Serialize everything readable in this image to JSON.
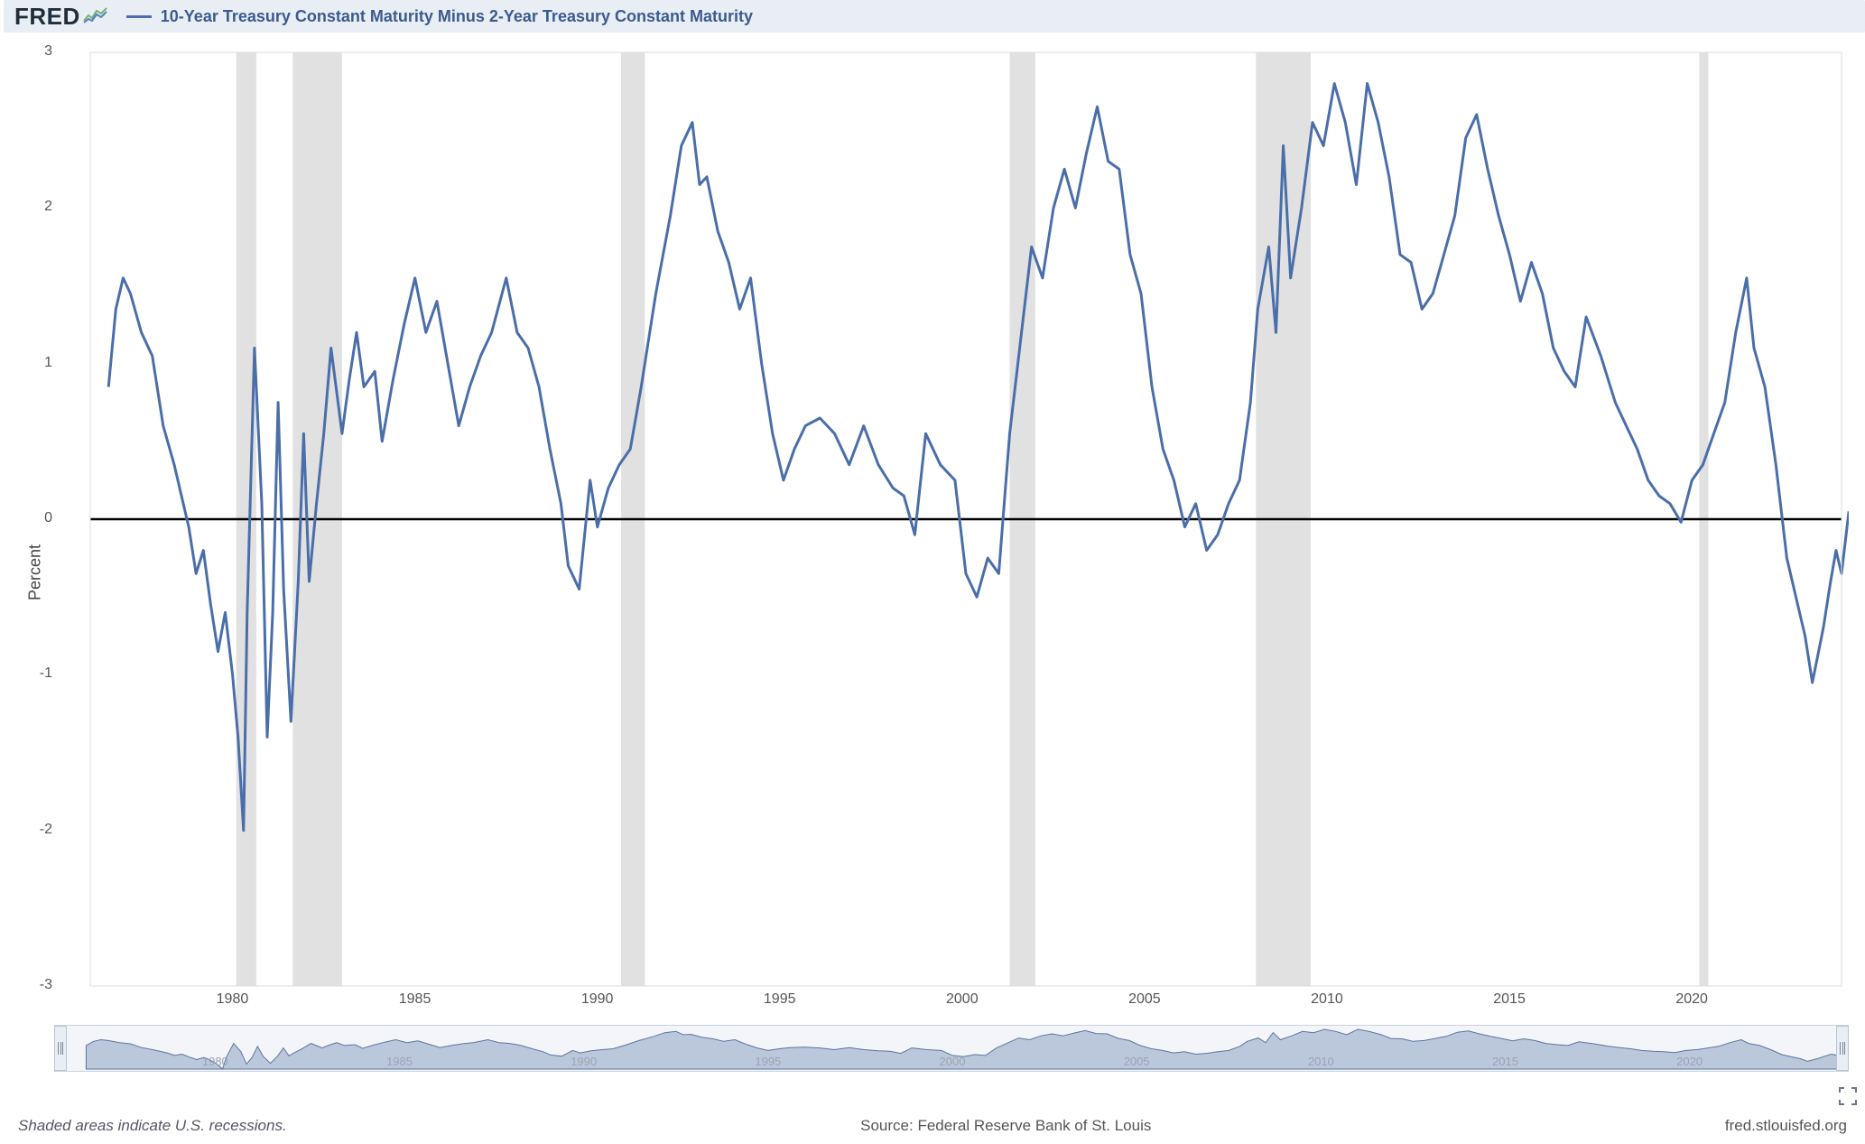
{
  "header": {
    "logo_text": "FRED",
    "series_title": "10-Year Treasury Constant Maturity Minus 2-Year Treasury Constant Maturity"
  },
  "chart": {
    "type": "line",
    "ylabel": "Percent",
    "ylim": [
      -3,
      3
    ],
    "ytick_step": 1,
    "yticks": [
      -3,
      -2,
      -1,
      0,
      1,
      2,
      3
    ],
    "xlim": [
      1976,
      2024
    ],
    "xticks": [
      1980,
      1985,
      1990,
      1995,
      2000,
      2005,
      2010,
      2015,
      2020
    ],
    "background_color": "#ffffff",
    "grid_color": "#e6e6e6",
    "line_color": "#4a6ea9",
    "line_width": 3,
    "zero_line_color": "#000000",
    "zero_line_width": 2.5,
    "recession_fill": "#e1e1e1",
    "recessions": [
      {
        "start": 1980.0,
        "end": 1980.55
      },
      {
        "start": 1981.55,
        "end": 1982.9
      },
      {
        "start": 1990.55,
        "end": 1991.2
      },
      {
        "start": 2001.2,
        "end": 2001.9
      },
      {
        "start": 2007.95,
        "end": 2009.45
      },
      {
        "start": 2020.1,
        "end": 2020.35
      }
    ],
    "series": [
      {
        "x": 1976.5,
        "y": 0.85
      },
      {
        "x": 1976.7,
        "y": 1.35
      },
      {
        "x": 1976.9,
        "y": 1.55
      },
      {
        "x": 1977.1,
        "y": 1.45
      },
      {
        "x": 1977.4,
        "y": 1.2
      },
      {
        "x": 1977.7,
        "y": 1.05
      },
      {
        "x": 1978.0,
        "y": 0.6
      },
      {
        "x": 1978.3,
        "y": 0.35
      },
      {
        "x": 1978.5,
        "y": 0.15
      },
      {
        "x": 1978.7,
        "y": -0.05
      },
      {
        "x": 1978.9,
        "y": -0.35
      },
      {
        "x": 1979.1,
        "y": -0.2
      },
      {
        "x": 1979.3,
        "y": -0.55
      },
      {
        "x": 1979.5,
        "y": -0.85
      },
      {
        "x": 1979.7,
        "y": -0.6
      },
      {
        "x": 1979.9,
        "y": -1.0
      },
      {
        "x": 1980.05,
        "y": -1.4
      },
      {
        "x": 1980.2,
        "y": -2.0
      },
      {
        "x": 1980.3,
        "y": -0.6
      },
      {
        "x": 1980.5,
        "y": 1.1
      },
      {
        "x": 1980.7,
        "y": 0.1
      },
      {
        "x": 1980.85,
        "y": -1.4
      },
      {
        "x": 1981.0,
        "y": -0.6
      },
      {
        "x": 1981.15,
        "y": 0.75
      },
      {
        "x": 1981.3,
        "y": -0.45
      },
      {
        "x": 1981.5,
        "y": -1.3
      },
      {
        "x": 1981.7,
        "y": -0.4
      },
      {
        "x": 1981.85,
        "y": 0.55
      },
      {
        "x": 1982.0,
        "y": -0.4
      },
      {
        "x": 1982.2,
        "y": 0.1
      },
      {
        "x": 1982.4,
        "y": 0.55
      },
      {
        "x": 1982.6,
        "y": 1.1
      },
      {
        "x": 1982.9,
        "y": 0.55
      },
      {
        "x": 1983.1,
        "y": 0.9
      },
      {
        "x": 1983.3,
        "y": 1.2
      },
      {
        "x": 1983.5,
        "y": 0.85
      },
      {
        "x": 1983.8,
        "y": 0.95
      },
      {
        "x": 1984.0,
        "y": 0.5
      },
      {
        "x": 1984.3,
        "y": 0.9
      },
      {
        "x": 1984.6,
        "y": 1.25
      },
      {
        "x": 1984.9,
        "y": 1.55
      },
      {
        "x": 1985.2,
        "y": 1.2
      },
      {
        "x": 1985.5,
        "y": 1.4
      },
      {
        "x": 1985.8,
        "y": 1.0
      },
      {
        "x": 1986.1,
        "y": 0.6
      },
      {
        "x": 1986.4,
        "y": 0.85
      },
      {
        "x": 1986.7,
        "y": 1.05
      },
      {
        "x": 1987.0,
        "y": 1.2
      },
      {
        "x": 1987.4,
        "y": 1.55
      },
      {
        "x": 1987.7,
        "y": 1.2
      },
      {
        "x": 1988.0,
        "y": 1.1
      },
      {
        "x": 1988.3,
        "y": 0.85
      },
      {
        "x": 1988.6,
        "y": 0.45
      },
      {
        "x": 1988.9,
        "y": 0.1
      },
      {
        "x": 1989.1,
        "y": -0.3
      },
      {
        "x": 1989.4,
        "y": -0.45
      },
      {
        "x": 1989.7,
        "y": 0.25
      },
      {
        "x": 1989.9,
        "y": -0.05
      },
      {
        "x": 1990.2,
        "y": 0.2
      },
      {
        "x": 1990.5,
        "y": 0.35
      },
      {
        "x": 1990.8,
        "y": 0.45
      },
      {
        "x": 1991.1,
        "y": 0.85
      },
      {
        "x": 1991.5,
        "y": 1.45
      },
      {
        "x": 1991.9,
        "y": 1.95
      },
      {
        "x": 1992.2,
        "y": 2.4
      },
      {
        "x": 1992.5,
        "y": 2.55
      },
      {
        "x": 1992.7,
        "y": 2.15
      },
      {
        "x": 1992.9,
        "y": 2.2
      },
      {
        "x": 1993.2,
        "y": 1.85
      },
      {
        "x": 1993.5,
        "y": 1.65
      },
      {
        "x": 1993.8,
        "y": 1.35
      },
      {
        "x": 1994.1,
        "y": 1.55
      },
      {
        "x": 1994.4,
        "y": 1.0
      },
      {
        "x": 1994.7,
        "y": 0.55
      },
      {
        "x": 1995.0,
        "y": 0.25
      },
      {
        "x": 1995.3,
        "y": 0.45
      },
      {
        "x": 1995.6,
        "y": 0.6
      },
      {
        "x": 1996.0,
        "y": 0.65
      },
      {
        "x": 1996.4,
        "y": 0.55
      },
      {
        "x": 1996.8,
        "y": 0.35
      },
      {
        "x": 1997.2,
        "y": 0.6
      },
      {
        "x": 1997.6,
        "y": 0.35
      },
      {
        "x": 1998.0,
        "y": 0.2
      },
      {
        "x": 1998.3,
        "y": 0.15
      },
      {
        "x": 1998.6,
        "y": -0.1
      },
      {
        "x": 1998.9,
        "y": 0.55
      },
      {
        "x": 1999.3,
        "y": 0.35
      },
      {
        "x": 1999.7,
        "y": 0.25
      },
      {
        "x": 2000.0,
        "y": -0.35
      },
      {
        "x": 2000.3,
        "y": -0.5
      },
      {
        "x": 2000.6,
        "y": -0.25
      },
      {
        "x": 2000.9,
        "y": -0.35
      },
      {
        "x": 2001.2,
        "y": 0.55
      },
      {
        "x": 2001.5,
        "y": 1.15
      },
      {
        "x": 2001.8,
        "y": 1.75
      },
      {
        "x": 2002.1,
        "y": 1.55
      },
      {
        "x": 2002.4,
        "y": 2.0
      },
      {
        "x": 2002.7,
        "y": 2.25
      },
      {
        "x": 2003.0,
        "y": 2.0
      },
      {
        "x": 2003.3,
        "y": 2.35
      },
      {
        "x": 2003.6,
        "y": 2.65
      },
      {
        "x": 2003.9,
        "y": 2.3
      },
      {
        "x": 2004.2,
        "y": 2.25
      },
      {
        "x": 2004.5,
        "y": 1.7
      },
      {
        "x": 2004.8,
        "y": 1.45
      },
      {
        "x": 2005.1,
        "y": 0.85
      },
      {
        "x": 2005.4,
        "y": 0.45
      },
      {
        "x": 2005.7,
        "y": 0.25
      },
      {
        "x": 2006.0,
        "y": -0.05
      },
      {
        "x": 2006.3,
        "y": 0.1
      },
      {
        "x": 2006.6,
        "y": -0.2
      },
      {
        "x": 2006.9,
        "y": -0.1
      },
      {
        "x": 2007.2,
        "y": 0.1
      },
      {
        "x": 2007.5,
        "y": 0.25
      },
      {
        "x": 2007.8,
        "y": 0.75
      },
      {
        "x": 2008.0,
        "y": 1.35
      },
      {
        "x": 2008.3,
        "y": 1.75
      },
      {
        "x": 2008.5,
        "y": 1.2
      },
      {
        "x": 2008.7,
        "y": 2.4
      },
      {
        "x": 2008.9,
        "y": 1.55
      },
      {
        "x": 2009.2,
        "y": 2.0
      },
      {
        "x": 2009.5,
        "y": 2.55
      },
      {
        "x": 2009.8,
        "y": 2.4
      },
      {
        "x": 2010.1,
        "y": 2.8
      },
      {
        "x": 2010.4,
        "y": 2.55
      },
      {
        "x": 2010.7,
        "y": 2.15
      },
      {
        "x": 2011.0,
        "y": 2.8
      },
      {
        "x": 2011.3,
        "y": 2.55
      },
      {
        "x": 2011.6,
        "y": 2.2
      },
      {
        "x": 2011.9,
        "y": 1.7
      },
      {
        "x": 2012.2,
        "y": 1.65
      },
      {
        "x": 2012.5,
        "y": 1.35
      },
      {
        "x": 2012.8,
        "y": 1.45
      },
      {
        "x": 2013.1,
        "y": 1.7
      },
      {
        "x": 2013.4,
        "y": 1.95
      },
      {
        "x": 2013.7,
        "y": 2.45
      },
      {
        "x": 2014.0,
        "y": 2.6
      },
      {
        "x": 2014.3,
        "y": 2.25
      },
      {
        "x": 2014.6,
        "y": 1.95
      },
      {
        "x": 2014.9,
        "y": 1.7
      },
      {
        "x": 2015.2,
        "y": 1.4
      },
      {
        "x": 2015.5,
        "y": 1.65
      },
      {
        "x": 2015.8,
        "y": 1.45
      },
      {
        "x": 2016.1,
        "y": 1.1
      },
      {
        "x": 2016.4,
        "y": 0.95
      },
      {
        "x": 2016.7,
        "y": 0.85
      },
      {
        "x": 2017.0,
        "y": 1.3
      },
      {
        "x": 2017.4,
        "y": 1.05
      },
      {
        "x": 2017.8,
        "y": 0.75
      },
      {
        "x": 2018.1,
        "y": 0.6
      },
      {
        "x": 2018.4,
        "y": 0.45
      },
      {
        "x": 2018.7,
        "y": 0.25
      },
      {
        "x": 2019.0,
        "y": 0.15
      },
      {
        "x": 2019.3,
        "y": 0.1
      },
      {
        "x": 2019.6,
        "y": -0.02
      },
      {
        "x": 2019.9,
        "y": 0.25
      },
      {
        "x": 2020.2,
        "y": 0.35
      },
      {
        "x": 2020.5,
        "y": 0.55
      },
      {
        "x": 2020.8,
        "y": 0.75
      },
      {
        "x": 2021.1,
        "y": 1.2
      },
      {
        "x": 2021.4,
        "y": 1.55
      },
      {
        "x": 2021.6,
        "y": 1.1
      },
      {
        "x": 2021.9,
        "y": 0.85
      },
      {
        "x": 2022.2,
        "y": 0.35
      },
      {
        "x": 2022.5,
        "y": -0.25
      },
      {
        "x": 2022.8,
        "y": -0.55
      },
      {
        "x": 2023.0,
        "y": -0.75
      },
      {
        "x": 2023.2,
        "y": -1.05
      },
      {
        "x": 2023.5,
        "y": -0.7
      },
      {
        "x": 2023.7,
        "y": -0.4
      },
      {
        "x": 2023.85,
        "y": -0.2
      },
      {
        "x": 2024.0,
        "y": -0.35
      },
      {
        "x": 2024.2,
        "y": 0.05
      }
    ]
  },
  "navigator": {
    "ticks": [
      1980,
      1985,
      1990,
      1995,
      2000,
      2005,
      2010,
      2015,
      2020
    ],
    "fill_color": "#8da2c3",
    "fill_opacity": 0.55,
    "stroke_color": "#5b759f",
    "tick_label_color": "#9aa3b2"
  },
  "footer": {
    "recession_note": "Shaded areas indicate U.S. recessions.",
    "source": "Source: Federal Reserve Bank of St. Louis",
    "url": "fred.stlouisfed.org"
  }
}
